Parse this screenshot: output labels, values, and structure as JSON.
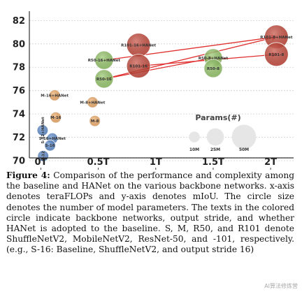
{
  "chart_data": {
    "type": "scatter",
    "title": "",
    "xlabel": "",
    "ylabel": "",
    "xlim": [
      -0.1,
      2.2
    ],
    "ylim": [
      69.4,
      82.8
    ],
    "x_ticks": [
      0,
      0.5,
      1,
      1.5,
      2
    ],
    "x_tick_labels": [
      "0T",
      "0.5T",
      "1T",
      "1.5T",
      "2T"
    ],
    "y_ticks": [
      70,
      72,
      74,
      76,
      78,
      80,
      82
    ],
    "y_tick_labels": [
      "70",
      "72",
      "74",
      "76",
      "78",
      "80",
      "82"
    ],
    "series": [
      {
        "color": "#4f81c7",
        "points": [
          {
            "label": "S-32+HANet",
            "x": 0.015,
            "y": 72.6,
            "params": 10
          },
          {
            "label": "S-16+HANet",
            "x": 0.1,
            "y": 71.9,
            "params": 10
          },
          {
            "label": "S-16",
            "x": 0.08,
            "y": 71.3,
            "params": 10
          },
          {
            "label": "S-32",
            "x": 0.02,
            "y": 70.4,
            "params": 10
          }
        ]
      },
      {
        "color": "#eda35a",
        "points": [
          {
            "label": "M-16+HANet",
            "x": 0.12,
            "y": 75.6,
            "params": 10
          },
          {
            "label": "M-8+HANet",
            "x": 0.45,
            "y": 75.0,
            "params": 10
          },
          {
            "label": "M-16",
            "x": 0.13,
            "y": 73.7,
            "params": 10
          },
          {
            "label": "M-8",
            "x": 0.47,
            "y": 73.4,
            "params": 10
          }
        ]
      },
      {
        "color": "#8bbf5c",
        "points": [
          {
            "label": "R50-16+HANet",
            "x": 0.55,
            "y": 78.6,
            "params": 28
          },
          {
            "label": "R50-16",
            "x": 0.55,
            "y": 77.0,
            "params": 28
          },
          {
            "label": "R50-8+HANet",
            "x": 1.5,
            "y": 78.8,
            "params": 28
          },
          {
            "label": "R50-8",
            "x": 1.5,
            "y": 77.9,
            "params": 28
          }
        ]
      },
      {
        "color": "#c0392b",
        "points": [
          {
            "label": "R101-16+HANet",
            "x": 0.85,
            "y": 79.9,
            "params": 47
          },
          {
            "label": "R101-16",
            "x": 0.85,
            "y": 78.1,
            "params": 47
          },
          {
            "label": "R101-8+HANet",
            "x": 2.05,
            "y": 80.6,
            "params": 47
          },
          {
            "label": "R101-8",
            "x": 2.05,
            "y": 79.1,
            "params": 47
          }
        ]
      }
    ],
    "legend": {
      "title": "Params(#)",
      "placement": "lower-right",
      "entries": [
        {
          "label": "10M",
          "params": 10
        },
        {
          "label": "25M",
          "params": 25
        },
        {
          "label": "50M",
          "params": 50
        }
      ]
    }
  },
  "caption": {
    "figure_label": "Figure 4:",
    "text": " Comparison of the performance and complexity among the baseline and HANet on the various backbone networks. x-axis denotes teraFLOPs and y-axis denotes mIoU. The circle size denotes the number of model parameters. The texts in the colored circle indicate backbone networks, output stride, and whether HANet is adopted to the baseline. S, M, R50, and R101 denote ShuffleNetV2, MobileNetV2, ResNet-50, and -101, respectively. (e.g., S-16: Baseline, ShuffleNetV2, and output stride 16)"
  },
  "watermark": "AI算法修炼营"
}
